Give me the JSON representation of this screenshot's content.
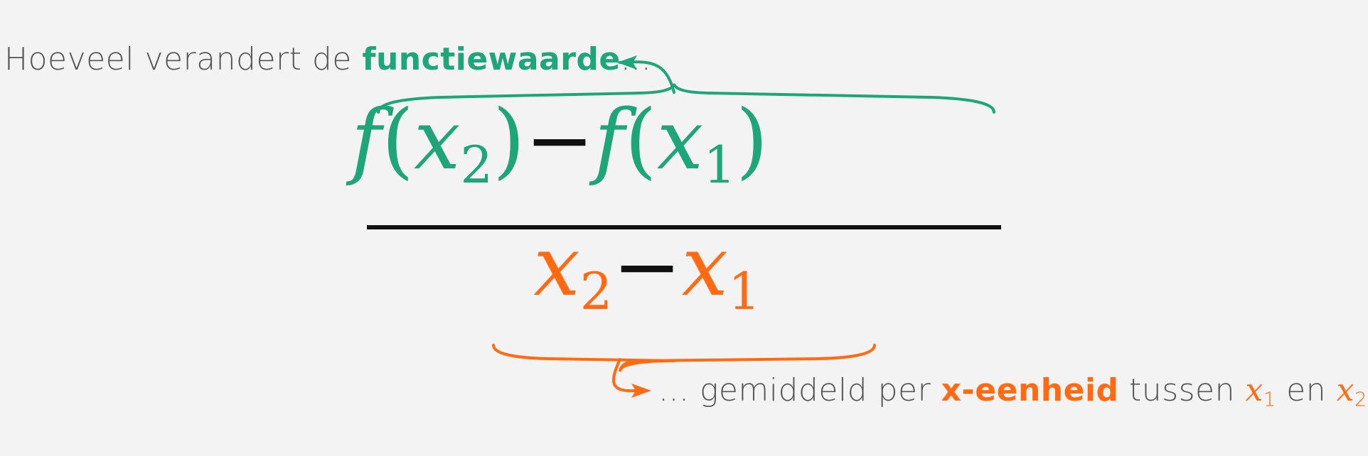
{
  "colors": {
    "green": "#1fa57a",
    "orange": "#ff6a13",
    "text": "#555555",
    "background": "#f3f3f3",
    "bar": "#111111"
  },
  "top_caption": {
    "prefix": "Hoeveel verandert de ",
    "emphasis": "functiewaarde",
    "suffix": "..."
  },
  "numerator": {
    "f1": "f",
    "x2": "x",
    "sub2": "2",
    "minus": "−",
    "f2": "f",
    "x1": "x",
    "sub1": "1",
    "lparen": "(",
    "rparen": ")"
  },
  "denominator": {
    "x2": "x",
    "sub2": "2",
    "minus": "−",
    "x1": "x",
    "sub1": "1"
  },
  "bottom_caption": {
    "prefix": "... gemiddeld per ",
    "emphasis": "x-eenheid",
    "middle": " tussen ",
    "var_a": "x",
    "sub_a": "1",
    "connector": " en ",
    "var_b": "x",
    "sub_b": "2",
    "suffix": "?"
  }
}
